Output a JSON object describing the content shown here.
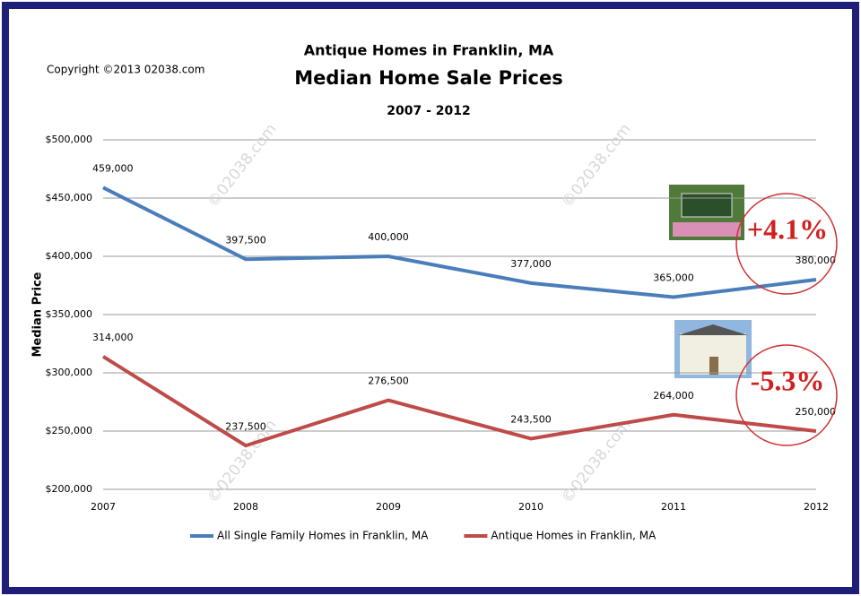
{
  "chart_data": {
    "type": "line",
    "title": "Antique Homes in Franklin, MA",
    "subtitle": "Median Home Sale Prices",
    "period": "2007 - 2012",
    "copyright": "Copyright ©2013 02038.com",
    "watermark": "©02038.com",
    "y_label": "Median Price",
    "x": [
      2007,
      2008,
      2009,
      2010,
      2011,
      2012
    ],
    "xlim": [
      2007,
      2012
    ],
    "xticks": [
      2007,
      2008,
      2009,
      2010,
      2011,
      2012
    ],
    "ylim": [
      200000,
      500000
    ],
    "yticks": [
      {
        "value": 200000,
        "label": "$200,000"
      },
      {
        "value": 250000,
        "label": "$250,000"
      },
      {
        "value": 300000,
        "label": "$300,000"
      },
      {
        "value": 350000,
        "label": "$350,000"
      },
      {
        "value": 400000,
        "label": "$400,000"
      },
      {
        "value": 450000,
        "label": "$450,000"
      },
      {
        "value": 500000,
        "label": "$500,000"
      }
    ],
    "grid": true,
    "legend": "bottom",
    "series": [
      {
        "name": "All Single Family Homes in Franklin, MA",
        "color": "#4a7ebb",
        "values": [
          459000,
          397500,
          400000,
          377000,
          365000,
          380000
        ],
        "value_labels": [
          "459,000",
          "397,500",
          "400,000",
          "377,000",
          "365,000",
          "380,000"
        ],
        "change": "+4.1%"
      },
      {
        "name": "Antique Homes in Franklin, MA",
        "color": "#be4b48",
        "values": [
          314000,
          237500,
          276500,
          243500,
          264000,
          250000
        ],
        "value_labels": [
          "314,000",
          "237,500",
          "276,500",
          "243,500",
          "264,000",
          "250,000"
        ],
        "change": "-5.3%"
      }
    ]
  }
}
